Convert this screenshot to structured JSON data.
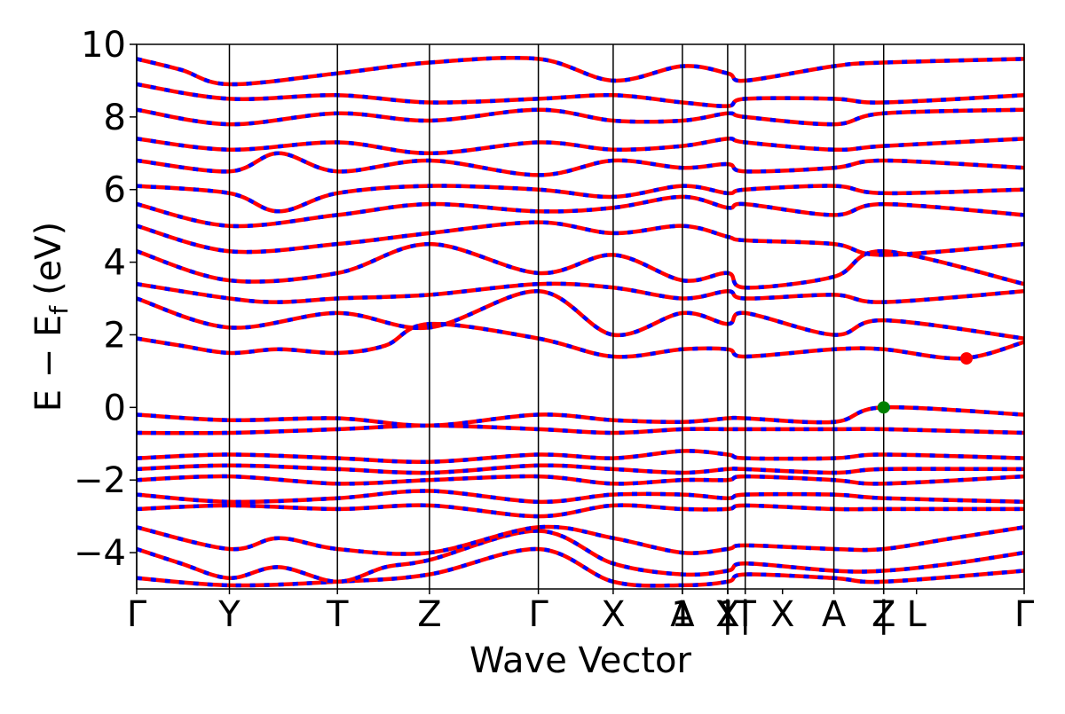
{
  "chart_data": {
    "type": "line",
    "title": "",
    "xlabel": "Wave Vector",
    "ylabel_main": "E − E",
    "ylabel_sub": "f",
    "ylabel_unit": "(eV)",
    "ylim": [
      -5,
      10
    ],
    "yticks": [
      10,
      8,
      6,
      4,
      2,
      0,
      -2,
      -4
    ],
    "ytick_labels": [
      "10",
      "8",
      "6",
      "4",
      "2",
      "0",
      "−2",
      "−4"
    ],
    "xlim": [
      0,
      1
    ],
    "kpoints": [
      {
        "label": "Γ",
        "x": 0.0
      },
      {
        "label": "Y",
        "x": 0.1045
      },
      {
        "label": "T",
        "x": 0.2262
      },
      {
        "label": "Z",
        "x": 0.3299
      },
      {
        "label": "Γ",
        "x": 0.4526
      },
      {
        "label": "X",
        "x": 0.5369
      },
      {
        "label": "A",
        "x": 0.6149
      },
      {
        "label": "1",
        "x": 0.6149
      },
      {
        "label": "Y",
        "x": 0.6659
      },
      {
        "label": "X",
        "x": 0.6659
      },
      {
        "label": "|",
        "x": 0.6659
      },
      {
        "label": "1",
        "x": 0.6659
      },
      {
        "label": "T",
        "x": 0.6857
      },
      {
        "label": "|",
        "x": 0.6857
      },
      {
        "label": "X",
        "x": 0.7277
      },
      {
        "label": "A",
        "x": 0.7856
      },
      {
        "label": "Z",
        "x": 0.8417
      },
      {
        "label": "|",
        "x": 0.8417
      },
      {
        "label": "L",
        "x": 0.8787
      },
      {
        "label": "Γ",
        "x": 1.0
      }
    ],
    "vlines": [
      0.0,
      0.1045,
      0.2262,
      0.3299,
      0.4526,
      0.5369,
      0.6149,
      0.6659,
      0.6857,
      0.7856,
      0.8417,
      1.0
    ],
    "series": [
      {
        "x": [
          0.0,
          0.1045,
          0.2262,
          0.3299,
          0.4526,
          0.5369,
          0.6149,
          0.6659,
          0.6857,
          0.7856,
          0.8417,
          1.0
        ],
        "y": [
          -4.7,
          -4.9,
          -4.8,
          -4.6,
          -3.9,
          -4.8,
          -4.9,
          -4.8,
          -4.6,
          -4.7,
          -4.8,
          -4.5
        ]
      },
      {
        "x": [
          0.0,
          0.05,
          0.1045,
          0.16,
          0.2262,
          0.28,
          0.3299,
          0.4526,
          0.5369,
          0.6149,
          0.6659,
          0.6857,
          0.7856,
          0.8417,
          0.92,
          1.0
        ],
        "y": [
          -3.9,
          -4.3,
          -4.7,
          -4.4,
          -4.8,
          -4.4,
          -4.2,
          -3.4,
          -4.3,
          -4.6,
          -4.5,
          -4.3,
          -4.5,
          -4.5,
          -4.3,
          -4.0
        ]
      },
      {
        "x": [
          0.0,
          0.1045,
          0.16,
          0.2262,
          0.3299,
          0.4526,
          0.5369,
          0.6149,
          0.6659,
          0.6857,
          0.7856,
          0.8417,
          0.92,
          1.0
        ],
        "y": [
          -3.3,
          -3.9,
          -3.6,
          -3.9,
          -4.0,
          -3.3,
          -3.6,
          -4.0,
          -3.9,
          -3.8,
          -3.9,
          -3.9,
          -3.6,
          -3.3
        ]
      },
      {
        "x": [
          0.0,
          0.1045,
          0.2262,
          0.3299,
          0.4526,
          0.5369,
          0.6149,
          0.6659,
          0.6857,
          0.7856,
          0.8417,
          1.0
        ],
        "y": [
          -2.8,
          -2.7,
          -2.8,
          -2.7,
          -3.0,
          -2.7,
          -2.8,
          -2.8,
          -2.7,
          -2.8,
          -2.8,
          -2.8
        ]
      },
      {
        "x": [
          0.0,
          0.1045,
          0.2262,
          0.3299,
          0.4526,
          0.5369,
          0.6149,
          0.6659,
          0.6857,
          0.7856,
          0.8417,
          1.0
        ],
        "y": [
          -2.4,
          -2.6,
          -2.5,
          -2.3,
          -2.6,
          -2.4,
          -2.4,
          -2.5,
          -2.4,
          -2.4,
          -2.5,
          -2.6
        ]
      },
      {
        "x": [
          0.0,
          0.1045,
          0.2262,
          0.3299,
          0.4526,
          0.5369,
          0.6149,
          0.6659,
          0.6857,
          0.7856,
          0.8417,
          1.0
        ],
        "y": [
          -2.0,
          -1.9,
          -2.1,
          -2.0,
          -1.9,
          -2.1,
          -2.0,
          -2.0,
          -1.9,
          -2.0,
          -2.1,
          -1.9
        ]
      },
      {
        "x": [
          0.0,
          0.1045,
          0.2262,
          0.3299,
          0.4526,
          0.5369,
          0.6149,
          0.6659,
          0.6857,
          0.7856,
          0.8417,
          1.0
        ],
        "y": [
          -1.7,
          -1.6,
          -1.7,
          -1.8,
          -1.6,
          -1.7,
          -1.8,
          -1.7,
          -1.7,
          -1.8,
          -1.7,
          -1.7
        ]
      },
      {
        "x": [
          0.0,
          0.1045,
          0.2262,
          0.3299,
          0.4526,
          0.5369,
          0.6149,
          0.6659,
          0.6857,
          0.7856,
          0.8417,
          1.0
        ],
        "y": [
          -1.4,
          -1.3,
          -1.4,
          -1.5,
          -1.3,
          -1.4,
          -1.2,
          -1.3,
          -1.4,
          -1.4,
          -1.3,
          -1.4
        ]
      },
      {
        "x": [
          0.0,
          0.1045,
          0.2262,
          0.3299,
          0.4526,
          0.5369,
          0.6149,
          0.6659,
          0.6857,
          0.7856,
          0.8417,
          1.0
        ],
        "y": [
          -0.7,
          -0.7,
          -0.6,
          -0.5,
          -0.6,
          -0.7,
          -0.6,
          -0.6,
          -0.6,
          -0.6,
          -0.6,
          -0.7
        ]
      },
      {
        "x": [
          0.0,
          0.1045,
          0.2262,
          0.3299,
          0.4526,
          0.5369,
          0.6149,
          0.6659,
          0.6857,
          0.7856,
          0.8417,
          1.0
        ],
        "y": [
          -0.2,
          -0.35,
          -0.3,
          -0.5,
          -0.2,
          -0.35,
          -0.4,
          -0.3,
          -0.3,
          -0.4,
          0.0,
          -0.2
        ]
      },
      {
        "x": [
          0.0,
          0.05,
          0.1045,
          0.16,
          0.2262,
          0.28,
          0.3299,
          0.4526,
          0.5369,
          0.6149,
          0.6659,
          0.6857,
          0.7856,
          0.8417,
          0.93,
          1.0
        ],
        "y": [
          1.9,
          1.7,
          1.5,
          1.6,
          1.5,
          1.7,
          2.3,
          1.9,
          1.4,
          1.6,
          1.6,
          1.4,
          1.6,
          1.6,
          1.35,
          1.8
        ]
      },
      {
        "x": [
          0.0,
          0.1045,
          0.2262,
          0.3299,
          0.4526,
          0.5369,
          0.6149,
          0.6659,
          0.6857,
          0.7856,
          0.8417,
          1.0
        ],
        "y": [
          3.0,
          2.2,
          2.6,
          2.2,
          3.2,
          2.0,
          2.6,
          2.3,
          2.6,
          2.0,
          2.4,
          1.9
        ]
      },
      {
        "x": [
          0.0,
          0.1045,
          0.16,
          0.2262,
          0.3299,
          0.4526,
          0.5369,
          0.6149,
          0.6659,
          0.6857,
          0.7856,
          0.8417,
          1.0
        ],
        "y": [
          3.4,
          3.0,
          2.9,
          3.0,
          3.1,
          3.4,
          3.3,
          3.0,
          3.2,
          3.0,
          3.1,
          2.9,
          3.2
        ]
      },
      {
        "x": [
          0.0,
          0.1045,
          0.2262,
          0.3299,
          0.4526,
          0.5369,
          0.6149,
          0.6659,
          0.6857,
          0.7856,
          0.8417,
          1.0
        ],
        "y": [
          4.3,
          3.5,
          3.7,
          4.5,
          3.7,
          4.2,
          3.5,
          3.7,
          3.3,
          3.6,
          4.3,
          3.4
        ]
      },
      {
        "x": [
          0.0,
          0.1045,
          0.2262,
          0.3299,
          0.4526,
          0.5369,
          0.6149,
          0.6659,
          0.6857,
          0.7856,
          0.8417,
          1.0
        ],
        "y": [
          5.0,
          4.3,
          4.5,
          4.8,
          5.1,
          4.8,
          5.0,
          4.7,
          4.6,
          4.5,
          4.2,
          4.5
        ]
      },
      {
        "x": [
          0.0,
          0.1045,
          0.2262,
          0.3299,
          0.4526,
          0.5369,
          0.6149,
          0.6659,
          0.6857,
          0.7856,
          0.8417,
          1.0
        ],
        "y": [
          5.6,
          5.0,
          5.3,
          5.6,
          5.4,
          5.5,
          5.8,
          5.5,
          5.6,
          5.3,
          5.6,
          5.3
        ]
      },
      {
        "x": [
          0.0,
          0.1045,
          0.16,
          0.2262,
          0.3299,
          0.4526,
          0.5369,
          0.6149,
          0.6659,
          0.6857,
          0.7856,
          0.8417,
          1.0
        ],
        "y": [
          6.1,
          5.9,
          5.4,
          5.9,
          6.1,
          6.0,
          5.8,
          6.1,
          5.9,
          6.0,
          6.1,
          5.9,
          6.0
        ]
      },
      {
        "x": [
          0.0,
          0.1045,
          0.16,
          0.2262,
          0.3299,
          0.4526,
          0.5369,
          0.6149,
          0.6659,
          0.6857,
          0.7856,
          0.8417,
          1.0
        ],
        "y": [
          6.8,
          6.5,
          7.0,
          6.5,
          6.8,
          6.4,
          6.8,
          6.6,
          6.7,
          6.5,
          6.6,
          6.8,
          6.6
        ]
      },
      {
        "x": [
          0.0,
          0.1045,
          0.2262,
          0.3299,
          0.4526,
          0.5369,
          0.6149,
          0.6659,
          0.6857,
          0.7856,
          0.8417,
          1.0
        ],
        "y": [
          7.4,
          7.1,
          7.3,
          7.0,
          7.3,
          7.1,
          7.2,
          7.4,
          7.3,
          7.1,
          7.2,
          7.4
        ]
      },
      {
        "x": [
          0.0,
          0.1045,
          0.2262,
          0.3299,
          0.4526,
          0.5369,
          0.6149,
          0.6659,
          0.6857,
          0.7856,
          0.8417,
          1.0
        ],
        "y": [
          8.2,
          7.8,
          8.1,
          7.9,
          8.2,
          7.9,
          7.9,
          8.1,
          8.0,
          7.8,
          8.1,
          8.2
        ]
      },
      {
        "x": [
          0.0,
          0.1045,
          0.2262,
          0.3299,
          0.4526,
          0.5369,
          0.6149,
          0.6659,
          0.6857,
          0.7856,
          0.8417,
          1.0
        ],
        "y": [
          8.9,
          8.5,
          8.6,
          8.4,
          8.5,
          8.6,
          8.4,
          8.3,
          8.5,
          8.5,
          8.4,
          8.6
        ]
      },
      {
        "x": [
          0.0,
          0.05,
          0.1045,
          0.2262,
          0.3299,
          0.4526,
          0.5369,
          0.6149,
          0.6659,
          0.6857,
          0.7856,
          0.8417,
          1.0
        ],
        "y": [
          9.6,
          9.3,
          8.9,
          9.2,
          9.5,
          9.6,
          9.0,
          9.4,
          9.2,
          9.0,
          9.4,
          9.5,
          9.6
        ]
      }
    ],
    "markers": [
      {
        "name": "vbm",
        "x": 0.8417,
        "y": 0.0,
        "color": "#008000"
      },
      {
        "name": "cbm",
        "x": 0.935,
        "y": 1.35,
        "color": "#ff0000"
      }
    ],
    "colors": {
      "band_solid": "#ff0000",
      "band_dashed": "#0000ff"
    }
  }
}
